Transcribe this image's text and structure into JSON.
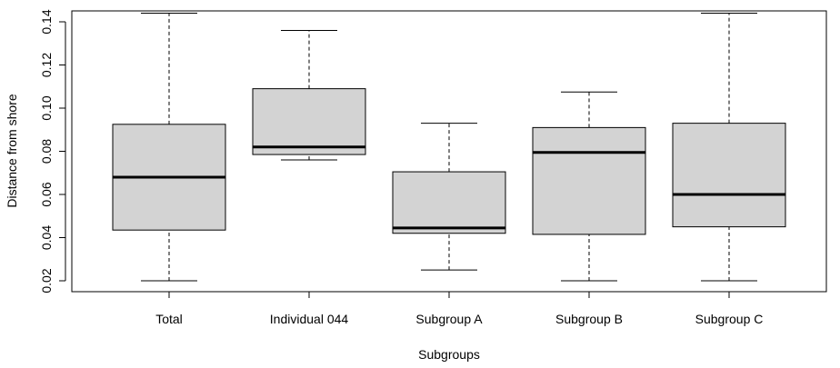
{
  "chart_data": {
    "type": "boxplot",
    "title": "",
    "xlabel": "Subgroups",
    "ylabel": "Distance from shore",
    "ylim": [
      0.015,
      0.148
    ],
    "yticks": [
      "0.02",
      "0.04",
      "0.06",
      "0.08",
      "0.10",
      "0.12",
      "0.14"
    ],
    "categories": [
      "Total",
      "Individual 044",
      "Subgroup A",
      "Subgroup B",
      "Subgroup C"
    ],
    "boxes": [
      {
        "min": 0.02,
        "q1": 0.0435,
        "median": 0.068,
        "q3": 0.0925,
        "max": 0.144
      },
      {
        "min": 0.076,
        "q1": 0.0785,
        "median": 0.082,
        "q3": 0.109,
        "max": 0.136
      },
      {
        "min": 0.025,
        "q1": 0.042,
        "median": 0.0445,
        "q3": 0.0705,
        "max": 0.093
      },
      {
        "min": 0.02,
        "q1": 0.0415,
        "median": 0.0795,
        "q3": 0.091,
        "max": 0.1075
      },
      {
        "min": 0.02,
        "q1": 0.045,
        "median": 0.06,
        "q3": 0.093,
        "max": 0.144
      }
    ],
    "grid": false,
    "colors": {
      "box_fill": "#d3d3d3",
      "stroke": "#000000"
    }
  }
}
